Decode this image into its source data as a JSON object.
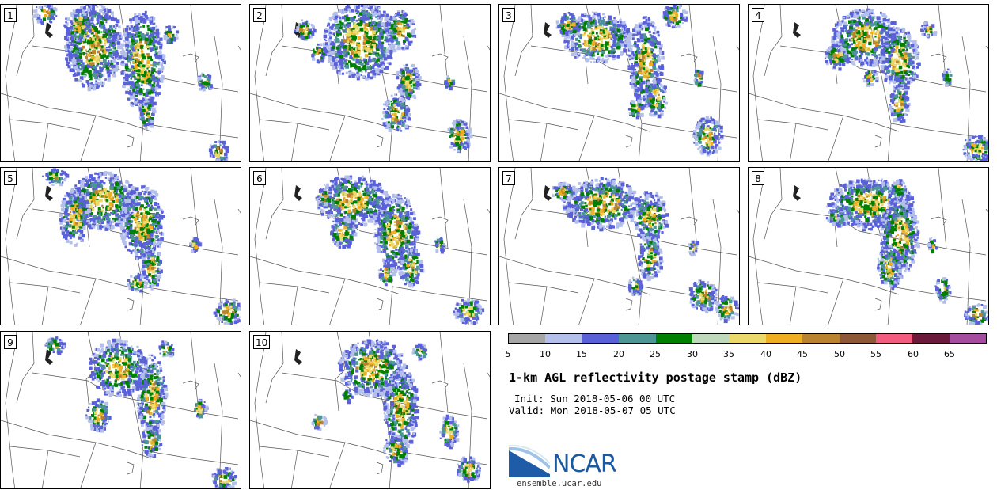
{
  "panels": [
    {
      "label": "1",
      "blobs": [
        [
          0.38,
          0.25,
          0.12,
          0.28
        ],
        [
          0.58,
          0.35,
          0.09,
          0.32
        ],
        [
          0.32,
          0.12,
          0.06,
          0.1
        ],
        [
          0.18,
          0.05,
          0.05,
          0.06
        ],
        [
          0.84,
          0.48,
          0.03,
          0.06
        ],
        [
          0.6,
          0.68,
          0.03,
          0.1
        ],
        [
          0.7,
          0.18,
          0.03,
          0.06
        ],
        [
          0.9,
          0.92,
          0.04,
          0.07
        ]
      ]
    },
    {
      "label": "2",
      "blobs": [
        [
          0.45,
          0.22,
          0.15,
          0.25
        ],
        [
          0.62,
          0.15,
          0.06,
          0.12
        ],
        [
          0.65,
          0.48,
          0.05,
          0.12
        ],
        [
          0.6,
          0.68,
          0.06,
          0.12
        ],
        [
          0.86,
          0.82,
          0.05,
          0.1
        ],
        [
          0.22,
          0.15,
          0.04,
          0.06
        ],
        [
          0.28,
          0.3,
          0.03,
          0.06
        ],
        [
          0.82,
          0.48,
          0.02,
          0.04
        ]
      ]
    },
    {
      "label": "3",
      "blobs": [
        [
          0.4,
          0.2,
          0.14,
          0.16
        ],
        [
          0.6,
          0.35,
          0.07,
          0.28
        ],
        [
          0.64,
          0.58,
          0.05,
          0.12
        ],
        [
          0.72,
          0.06,
          0.05,
          0.08
        ],
        [
          0.86,
          0.82,
          0.06,
          0.12
        ],
        [
          0.28,
          0.12,
          0.05,
          0.08
        ],
        [
          0.82,
          0.45,
          0.02,
          0.06
        ],
        [
          0.56,
          0.65,
          0.03,
          0.06
        ]
      ]
    },
    {
      "label": "4",
      "blobs": [
        [
          0.48,
          0.2,
          0.14,
          0.18
        ],
        [
          0.62,
          0.34,
          0.08,
          0.2
        ],
        [
          0.62,
          0.62,
          0.04,
          0.12
        ],
        [
          0.94,
          0.9,
          0.06,
          0.08
        ],
        [
          0.36,
          0.32,
          0.05,
          0.08
        ],
        [
          0.82,
          0.45,
          0.02,
          0.05
        ],
        [
          0.74,
          0.15,
          0.03,
          0.05
        ],
        [
          0.5,
          0.45,
          0.03,
          0.05
        ]
      ]
    },
    {
      "label": "5",
      "blobs": [
        [
          0.42,
          0.2,
          0.14,
          0.18
        ],
        [
          0.58,
          0.34,
          0.09,
          0.24
        ],
        [
          0.62,
          0.62,
          0.04,
          0.14
        ],
        [
          0.3,
          0.3,
          0.06,
          0.18
        ],
        [
          0.94,
          0.9,
          0.06,
          0.08
        ],
        [
          0.8,
          0.48,
          0.02,
          0.05
        ],
        [
          0.56,
          0.72,
          0.04,
          0.06
        ],
        [
          0.22,
          0.05,
          0.05,
          0.05
        ]
      ]
    },
    {
      "label": "6",
      "blobs": [
        [
          0.42,
          0.2,
          0.15,
          0.16
        ],
        [
          0.6,
          0.4,
          0.09,
          0.24
        ],
        [
          0.66,
          0.62,
          0.05,
          0.12
        ],
        [
          0.38,
          0.4,
          0.05,
          0.1
        ],
        [
          0.9,
          0.9,
          0.06,
          0.08
        ],
        [
          0.56,
          0.66,
          0.03,
          0.08
        ],
        [
          0.78,
          0.48,
          0.02,
          0.05
        ],
        [
          0.3,
          0.18,
          0.03,
          0.05
        ]
      ]
    },
    {
      "label": "7",
      "blobs": [
        [
          0.42,
          0.22,
          0.16,
          0.16
        ],
        [
          0.62,
          0.3,
          0.07,
          0.16
        ],
        [
          0.62,
          0.56,
          0.05,
          0.14
        ],
        [
          0.84,
          0.8,
          0.06,
          0.1
        ],
        [
          0.94,
          0.88,
          0.05,
          0.08
        ],
        [
          0.26,
          0.14,
          0.05,
          0.06
        ],
        [
          0.56,
          0.74,
          0.03,
          0.06
        ],
        [
          0.8,
          0.5,
          0.02,
          0.05
        ]
      ]
    },
    {
      "label": "8",
      "blobs": [
        [
          0.5,
          0.22,
          0.18,
          0.16
        ],
        [
          0.62,
          0.42,
          0.08,
          0.26
        ],
        [
          0.58,
          0.62,
          0.05,
          0.14
        ],
        [
          0.8,
          0.76,
          0.03,
          0.08
        ],
        [
          0.94,
          0.92,
          0.05,
          0.07
        ],
        [
          0.36,
          0.3,
          0.04,
          0.06
        ],
        [
          0.76,
          0.48,
          0.02,
          0.05
        ],
        [
          0.62,
          0.12,
          0.03,
          0.05
        ]
      ]
    },
    {
      "label": "9",
      "blobs": [
        [
          0.48,
          0.22,
          0.12,
          0.18
        ],
        [
          0.62,
          0.4,
          0.06,
          0.26
        ],
        [
          0.62,
          0.68,
          0.04,
          0.1
        ],
        [
          0.4,
          0.52,
          0.05,
          0.1
        ],
        [
          0.82,
          0.48,
          0.03,
          0.06
        ],
        [
          0.92,
          0.92,
          0.05,
          0.07
        ],
        [
          0.22,
          0.08,
          0.04,
          0.05
        ],
        [
          0.68,
          0.1,
          0.03,
          0.05
        ]
      ]
    },
    {
      "label": "10",
      "blobs": [
        [
          0.5,
          0.22,
          0.14,
          0.18
        ],
        [
          0.62,
          0.48,
          0.07,
          0.26
        ],
        [
          0.6,
          0.74,
          0.05,
          0.1
        ],
        [
          0.82,
          0.62,
          0.04,
          0.1
        ],
        [
          0.9,
          0.86,
          0.05,
          0.08
        ],
        [
          0.28,
          0.56,
          0.03,
          0.05
        ],
        [
          0.7,
          0.12,
          0.03,
          0.05
        ],
        [
          0.4,
          0.4,
          0.02,
          0.04
        ]
      ]
    }
  ],
  "colorbar": {
    "colors": [
      "#a6a6a6",
      "#b4c0ea",
      "#5a61d8",
      "#4e9696",
      "#008000",
      "#bfd9bc",
      "#ebd96c",
      "#eeaf22",
      "#b9832f",
      "#8d5837",
      "#f25c7e",
      "#6c1a3b",
      "#a54c9f"
    ],
    "ticks": [
      "5",
      "10",
      "15",
      "20",
      "25",
      "30",
      "35",
      "40",
      "45",
      "50",
      "55",
      "60",
      "65"
    ]
  },
  "title": "1-km AGL reflectivity postage stamp (dBZ)",
  "init": "Init: Sun 2018-05-06 00 UTC",
  "valid": "Valid: Mon 2018-05-07 05 UTC",
  "logo": {
    "text": "NCAR"
  },
  "site": "ensemble.ucar.edu"
}
